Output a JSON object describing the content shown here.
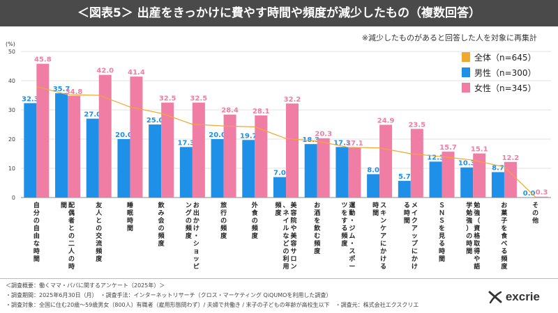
{
  "header": {
    "title": "＜図表5＞ 出産をきっかけに費やす時間や頻度が減少したもの（複数回答）"
  },
  "note": "※減少したものがあると回答した人を対象に再集計",
  "colors": {
    "all": "#f0a830",
    "male": "#1e90e8",
    "female": "#f07ea4",
    "header": "#4a4a4a"
  },
  "chart_data": {
    "type": "bar",
    "ylabel": "(%)",
    "ylim": [
      0,
      50
    ],
    "yticks": [
      0,
      10,
      20,
      30,
      40,
      50
    ],
    "categories": [
      "自分の自由な時間",
      "配偶者との二人の時間",
      "友人との交流頻度",
      "睡眠時間",
      "飲み会の頻度",
      "お出かけ・ショッピングの頻度",
      "旅行の頻度",
      "外食の頻度",
      "美容院や美容サロン、ネイルなどの利用頻度",
      "お酒を飲む頻度",
      "運動・ジム・スポーツをする頻度",
      "スキンケアにかける時間",
      "メイクアップにかける時間",
      "ＳＮＳを見る時間",
      "勉強（資格取得や語学勉強）の時間",
      "お菓子を食べる頻度",
      "その他"
    ],
    "series": [
      {
        "name": "全体（n=645）",
        "type": "line",
        "values": [
          38.0,
          35.2,
          35.0,
          31.0,
          28.8,
          25.1,
          24.5,
          24.2,
          20.2,
          19.3,
          17.2,
          17.0,
          15.0,
          14.0,
          12.8,
          10.5,
          0.2
        ]
      },
      {
        "name": "男性（n=300）",
        "type": "bar",
        "values": [
          32.3,
          35.7,
          27.0,
          20.0,
          25.0,
          17.3,
          20.0,
          19.7,
          7.0,
          18.3,
          17.3,
          8.0,
          5.7,
          12.3,
          10.3,
          8.7,
          0.0
        ]
      },
      {
        "name": "女性（n=345）",
        "type": "bar",
        "values": [
          45.8,
          34.8,
          42.0,
          41.4,
          32.5,
          32.5,
          28.4,
          28.1,
          32.2,
          20.3,
          17.1,
          24.9,
          23.5,
          15.7,
          15.1,
          12.2,
          0.3
        ]
      }
    ]
  },
  "footer": {
    "line1": "＜調査概要：働くママ・パパに関するアンケート（2025年）＞",
    "line2": "・調査期間：2025年6月30日（月）　・調査手法：インターネットリサーチ（クロス・マーケティング QiQUMOを利用した調査）",
    "line3": "・調査対象：全国に住む20歳～59歳男女（800人）有職者（雇用形態問わず）/ 夫婦で共働き / 末子の子どもの年齢が高校生以下　・調査元：株式会社エクスクリエ"
  },
  "brand": {
    "name": "excrie"
  }
}
